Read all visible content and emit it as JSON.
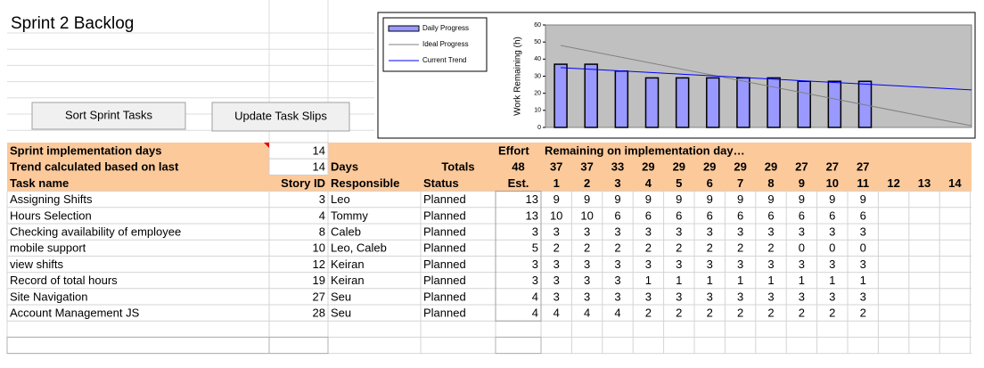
{
  "title": "Sprint 2 Backlog",
  "buttons": [
    "Sort Sprint Tasks",
    "Update Task Slips"
  ],
  "header": {
    "implementation_days_label": "Sprint implementation days",
    "implementation_days": 14,
    "trend_label": "Trend calculated based on last",
    "trend_days": 14,
    "days_label": "Days",
    "totals_label": "Totals",
    "effort_label": "Effort",
    "remaining_label": "Remaining on implementation day…",
    "total_effort": 48,
    "daily_totals": [
      37,
      37,
      33,
      29,
      29,
      29,
      29,
      29,
      27,
      27,
      27
    ]
  },
  "columns": [
    "Task name",
    "Story ID",
    "Responsible",
    "Status",
    "Est."
  ],
  "days": [
    1,
    2,
    3,
    4,
    5,
    6,
    7,
    8,
    9,
    10,
    11,
    12,
    13,
    14
  ],
  "tasks": [
    {
      "name": "Assigning Shifts",
      "id": 3,
      "responsible": "Leo",
      "status": "Planned",
      "est": 13,
      "remaining": [
        9,
        9,
        9,
        9,
        9,
        9,
        9,
        9,
        9,
        9,
        9
      ]
    },
    {
      "name": "Hours Selection",
      "id": 4,
      "responsible": "Tommy",
      "status": "Planned",
      "est": 13,
      "remaining": [
        10,
        10,
        6,
        6,
        6,
        6,
        6,
        6,
        6,
        6,
        6
      ]
    },
    {
      "name": "Checking availability of employee",
      "id": 8,
      "responsible": "Caleb",
      "status": "Planned",
      "est": 3,
      "remaining": [
        3,
        3,
        3,
        3,
        3,
        3,
        3,
        3,
        3,
        3,
        3
      ]
    },
    {
      "name": "mobile support",
      "id": 10,
      "responsible": "Leo, Caleb",
      "status": "Planned",
      "est": 5,
      "remaining": [
        2,
        2,
        2,
        2,
        2,
        2,
        2,
        2,
        0,
        0,
        0
      ]
    },
    {
      "name": "view shifts",
      "id": 12,
      "responsible": "Keiran",
      "status": "Planned",
      "est": 3,
      "remaining": [
        3,
        3,
        3,
        3,
        3,
        3,
        3,
        3,
        3,
        3,
        3
      ]
    },
    {
      "name": "Record of total hours",
      "id": 19,
      "responsible": "Keiran",
      "status": "Planned",
      "est": 3,
      "remaining": [
        3,
        3,
        3,
        1,
        1,
        1,
        1,
        1,
        1,
        1,
        1
      ]
    },
    {
      "name": "Site Navigation",
      "id": 27,
      "responsible": "Seu",
      "status": "Planned",
      "est": 4,
      "remaining": [
        3,
        3,
        3,
        3,
        3,
        3,
        3,
        3,
        3,
        3,
        3
      ]
    },
    {
      "name": "Account Management JS",
      "id": 28,
      "responsible": "Seu",
      "status": "Planned",
      "est": 4,
      "remaining": [
        4,
        4,
        4,
        2,
        2,
        2,
        2,
        2,
        2,
        2,
        2
      ]
    }
  ],
  "chart_data": {
    "type": "bar",
    "y_label": "Work Remaining (h)",
    "xlim": [
      0.5,
      14.5
    ],
    "ylim": [
      0,
      60
    ],
    "yticks": [
      0,
      10,
      20,
      30,
      40,
      50,
      60
    ],
    "series": [
      {
        "name": "Daily Progress",
        "kind": "bar",
        "color": "#9999ff",
        "x": [
          1,
          2,
          3,
          4,
          5,
          6,
          7,
          8,
          9,
          10,
          11
        ],
        "values": [
          37,
          37,
          33,
          29,
          29,
          29,
          29,
          29,
          27,
          27,
          27
        ]
      },
      {
        "name": "Ideal Progress",
        "kind": "line",
        "color": "#808080",
        "x": [
          1,
          14.5
        ],
        "values": [
          48,
          1
        ]
      },
      {
        "name": "Current Trend",
        "kind": "line",
        "color": "#0000ff",
        "x": [
          1,
          14.5
        ],
        "values": [
          35,
          22
        ]
      }
    ]
  }
}
